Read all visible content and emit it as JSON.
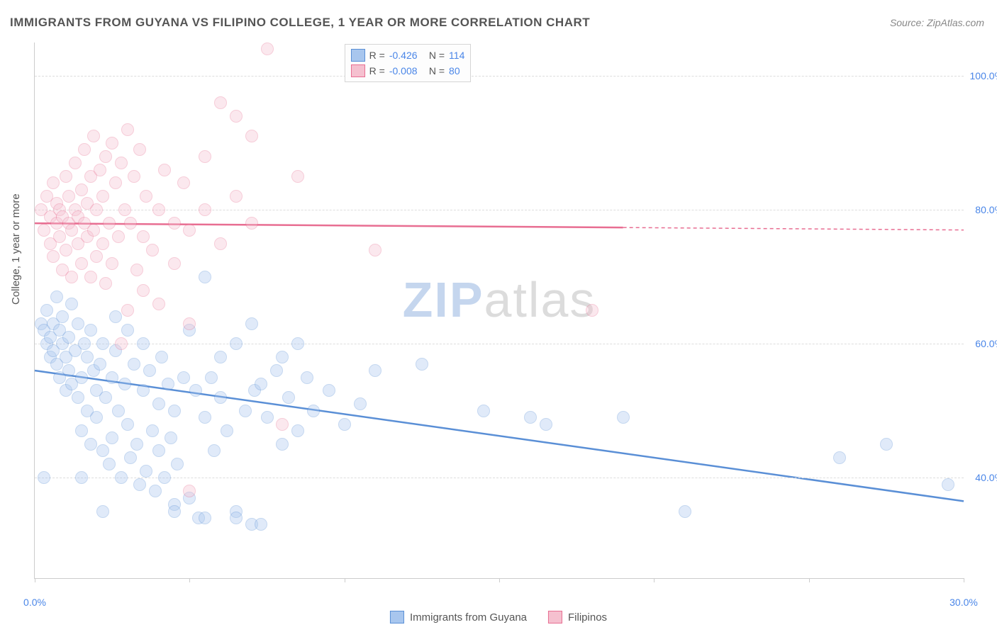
{
  "title": "IMMIGRANTS FROM GUYANA VS FILIPINO COLLEGE, 1 YEAR OR MORE CORRELATION CHART",
  "source_label": "Source:",
  "source_name": "ZipAtlas.com",
  "ylabel": "College, 1 year or more",
  "watermark_1": "ZIP",
  "watermark_2": "atlas",
  "chart": {
    "type": "scatter",
    "background": "#ffffff",
    "grid_color": "#dddddd",
    "axis_color": "#cccccc",
    "label_color": "#4a86e8",
    "xmin": 0,
    "xmax": 30,
    "ymin": 25,
    "ymax": 105,
    "xticks": [
      0,
      30
    ],
    "yticks": [
      40,
      60,
      80,
      100
    ],
    "ytick_labels": [
      "40.0%",
      "60.0%",
      "80.0%",
      "100.0%"
    ],
    "xtick_labels": [
      "0.0%",
      "30.0%"
    ],
    "xtick_minor": [
      5,
      10,
      15,
      20,
      25
    ],
    "point_radius": 8,
    "point_opacity": 0.35,
    "series": [
      {
        "name": "Immigrants from Guyana",
        "color_fill": "#a8c6ee",
        "color_stroke": "#5a8fd6",
        "trend": {
          "x1": 0,
          "y1": 56,
          "x2": 30,
          "y2": 36.5,
          "solid_until_x": 30
        },
        "R": "-0.426",
        "N": "114",
        "points": [
          [
            0.2,
            63
          ],
          [
            0.3,
            62
          ],
          [
            0.4,
            65
          ],
          [
            0.4,
            60
          ],
          [
            0.5,
            58
          ],
          [
            0.5,
            61
          ],
          [
            0.6,
            63
          ],
          [
            0.6,
            59
          ],
          [
            0.7,
            67
          ],
          [
            0.7,
            57
          ],
          [
            0.8,
            62
          ],
          [
            0.8,
            55
          ],
          [
            0.9,
            60
          ],
          [
            0.9,
            64
          ],
          [
            1.0,
            58
          ],
          [
            1.0,
            53
          ],
          [
            1.1,
            56
          ],
          [
            1.1,
            61
          ],
          [
            1.2,
            54
          ],
          [
            1.2,
            66
          ],
          [
            1.3,
            59
          ],
          [
            1.4,
            63
          ],
          [
            1.4,
            52
          ],
          [
            1.5,
            55
          ],
          [
            1.5,
            47
          ],
          [
            1.6,
            60
          ],
          [
            1.7,
            50
          ],
          [
            1.7,
            58
          ],
          [
            1.8,
            62
          ],
          [
            1.8,
            45
          ],
          [
            1.9,
            56
          ],
          [
            2.0,
            53
          ],
          [
            2.0,
            49
          ],
          [
            2.1,
            57
          ],
          [
            2.2,
            44
          ],
          [
            2.2,
            60
          ],
          [
            2.3,
            52
          ],
          [
            2.4,
            42
          ],
          [
            2.5,
            55
          ],
          [
            2.5,
            46
          ],
          [
            2.6,
            59
          ],
          [
            2.7,
            50
          ],
          [
            2.8,
            40
          ],
          [
            2.9,
            54
          ],
          [
            3.0,
            48
          ],
          [
            3.0,
            62
          ],
          [
            3.1,
            43
          ],
          [
            3.2,
            57
          ],
          [
            3.3,
            45
          ],
          [
            3.4,
            39
          ],
          [
            3.5,
            53
          ],
          [
            3.5,
            60
          ],
          [
            3.6,
            41
          ],
          [
            3.7,
            56
          ],
          [
            3.8,
            47
          ],
          [
            3.9,
            38
          ],
          [
            4.0,
            51
          ],
          [
            4.0,
            44
          ],
          [
            4.1,
            58
          ],
          [
            4.2,
            40
          ],
          [
            4.3,
            54
          ],
          [
            4.4,
            46
          ],
          [
            4.5,
            36
          ],
          [
            4.5,
            50
          ],
          [
            4.6,
            42
          ],
          [
            4.8,
            55
          ],
          [
            5.0,
            62
          ],
          [
            5.0,
            37
          ],
          [
            5.2,
            53
          ],
          [
            5.3,
            34
          ],
          [
            5.5,
            70
          ],
          [
            5.5,
            49
          ],
          [
            5.7,
            55
          ],
          [
            5.8,
            44
          ],
          [
            6.0,
            58
          ],
          [
            6.0,
            52
          ],
          [
            6.2,
            47
          ],
          [
            6.5,
            60
          ],
          [
            6.5,
            35
          ],
          [
            6.8,
            50
          ],
          [
            7.0,
            63
          ],
          [
            7.0,
            33
          ],
          [
            7.1,
            53
          ],
          [
            7.3,
            54
          ],
          [
            7.5,
            49
          ],
          [
            7.8,
            56
          ],
          [
            8.0,
            45
          ],
          [
            8.0,
            58
          ],
          [
            8.2,
            52
          ],
          [
            8.5,
            47
          ],
          [
            8.5,
            60
          ],
          [
            8.8,
            55
          ],
          [
            9.0,
            50
          ],
          [
            9.5,
            53
          ],
          [
            10.0,
            48
          ],
          [
            10.5,
            51
          ],
          [
            11.0,
            56
          ],
          [
            12.5,
            57
          ],
          [
            14.5,
            50
          ],
          [
            16.0,
            49
          ],
          [
            16.5,
            48
          ],
          [
            19.0,
            49
          ],
          [
            21.0,
            35
          ],
          [
            26.0,
            43
          ],
          [
            27.5,
            45
          ],
          [
            29.5,
            39
          ],
          [
            0.3,
            40
          ],
          [
            1.5,
            40
          ],
          [
            2.2,
            35
          ],
          [
            7.3,
            33
          ],
          [
            5.5,
            34
          ],
          [
            4.5,
            35
          ],
          [
            6.5,
            34
          ],
          [
            2.6,
            64
          ]
        ]
      },
      {
        "name": "Filipinos",
        "color_fill": "#f5c0cf",
        "color_stroke": "#e86e92",
        "trend": {
          "x1": 0,
          "y1": 78,
          "x2": 30,
          "y2": 77,
          "solid_until_x": 19
        },
        "R": "-0.008",
        "N": "80",
        "points": [
          [
            0.2,
            80
          ],
          [
            0.3,
            77
          ],
          [
            0.4,
            82
          ],
          [
            0.5,
            75
          ],
          [
            0.5,
            79
          ],
          [
            0.6,
            84
          ],
          [
            0.6,
            73
          ],
          [
            0.7,
            78
          ],
          [
            0.7,
            81
          ],
          [
            0.8,
            76
          ],
          [
            0.8,
            80
          ],
          [
            0.9,
            71
          ],
          [
            0.9,
            79
          ],
          [
            1.0,
            85
          ],
          [
            1.0,
            74
          ],
          [
            1.1,
            78
          ],
          [
            1.1,
            82
          ],
          [
            1.2,
            70
          ],
          [
            1.2,
            77
          ],
          [
            1.3,
            80
          ],
          [
            1.3,
            87
          ],
          [
            1.4,
            75
          ],
          [
            1.4,
            79
          ],
          [
            1.5,
            83
          ],
          [
            1.5,
            72
          ],
          [
            1.6,
            78
          ],
          [
            1.6,
            89
          ],
          [
            1.7,
            76
          ],
          [
            1.7,
            81
          ],
          [
            1.8,
            70
          ],
          [
            1.8,
            85
          ],
          [
            1.9,
            77
          ],
          [
            1.9,
            91
          ],
          [
            2.0,
            73
          ],
          [
            2.0,
            80
          ],
          [
            2.1,
            86
          ],
          [
            2.2,
            75
          ],
          [
            2.2,
            82
          ],
          [
            2.3,
            69
          ],
          [
            2.3,
            88
          ],
          [
            2.4,
            78
          ],
          [
            2.5,
            90
          ],
          [
            2.5,
            72
          ],
          [
            2.6,
            84
          ],
          [
            2.7,
            76
          ],
          [
            2.8,
            60
          ],
          [
            2.8,
            87
          ],
          [
            2.9,
            80
          ],
          [
            3.0,
            65
          ],
          [
            3.0,
            92
          ],
          [
            3.1,
            78
          ],
          [
            3.2,
            85
          ],
          [
            3.3,
            71
          ],
          [
            3.4,
            89
          ],
          [
            3.5,
            76
          ],
          [
            3.5,
            68
          ],
          [
            3.6,
            82
          ],
          [
            3.8,
            74
          ],
          [
            4.0,
            80
          ],
          [
            4.0,
            66
          ],
          [
            4.2,
            86
          ],
          [
            4.5,
            72
          ],
          [
            4.5,
            78
          ],
          [
            4.8,
            84
          ],
          [
            5.0,
            77
          ],
          [
            5.0,
            63
          ],
          [
            5.5,
            80
          ],
          [
            5.5,
            88
          ],
          [
            6.0,
            96
          ],
          [
            6.0,
            75
          ],
          [
            6.5,
            82
          ],
          [
            6.5,
            94
          ],
          [
            7.0,
            78
          ],
          [
            7.0,
            91
          ],
          [
            7.5,
            104
          ],
          [
            8.0,
            48
          ],
          [
            8.5,
            85
          ],
          [
            11.0,
            74
          ],
          [
            18.0,
            65
          ],
          [
            5.0,
            38
          ]
        ]
      }
    ]
  },
  "legend_title_R": "R =",
  "legend_title_N": "N ="
}
